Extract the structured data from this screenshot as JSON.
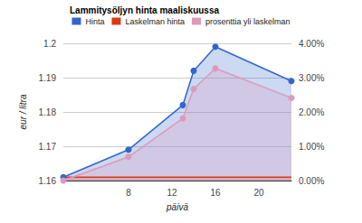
{
  "chart_data": {
    "type": "line",
    "title": "Lammitysöljyn hinta maaliskuussa",
    "x_label": "päivä",
    "y_label": "eur / litra",
    "x": [
      2,
      8,
      13,
      14,
      16,
      23
    ],
    "series": [
      {
        "name": "Hinta",
        "color": "#3366cc",
        "type": "area",
        "marker": "circle",
        "values": [
          1.161,
          1.169,
          1.182,
          1.192,
          1.199,
          1.189
        ]
      },
      {
        "name": "Laskelman hinta",
        "color": "#dc3912",
        "type": "area",
        "marker": "none",
        "values": [
          1.161,
          1.161,
          1.161,
          1.161,
          1.161,
          1.161
        ]
      },
      {
        "name": "prosenttia yli laskelman",
        "color": "#dd99bb",
        "type": "area",
        "marker": "circle",
        "axis": "y2",
        "values": [
          0,
          0.69,
          1.81,
          2.67,
          3.27,
          2.41
        ]
      }
    ],
    "xlim": [
      2,
      23
    ],
    "xticks": [
      8,
      12,
      16,
      20
    ],
    "ylim": [
      1.16,
      1.2
    ],
    "yticks": [
      1.16,
      1.17,
      1.18,
      1.19,
      1.2
    ],
    "y2lim": [
      0,
      4
    ],
    "y2ticks": [
      {
        "value": 0,
        "label": "0.00%"
      },
      {
        "value": 1,
        "label": "1.00%"
      },
      {
        "value": 2,
        "label": "2.00%"
      },
      {
        "value": 3,
        "label": "3.00%"
      },
      {
        "value": 4,
        "label": "4.00%"
      }
    ],
    "grid": true,
    "legend": "top"
  }
}
